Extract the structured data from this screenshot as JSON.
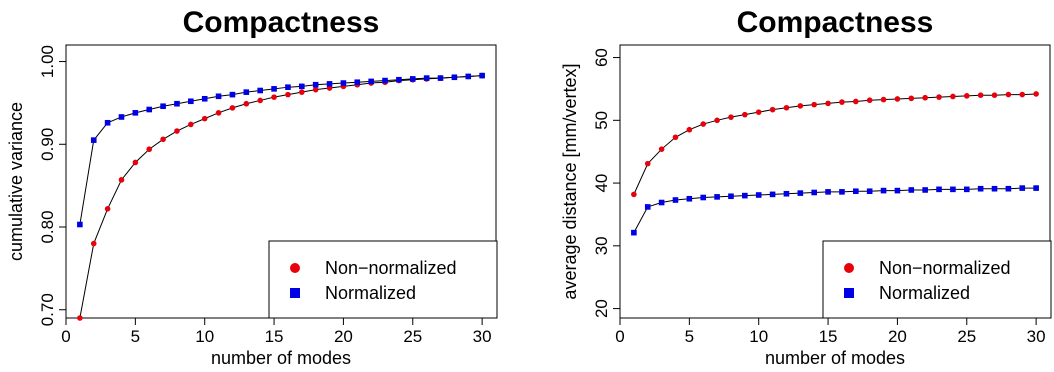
{
  "chart_data": [
    {
      "type": "scatter",
      "title": "Compactness",
      "xlabel": "number of modes",
      "ylabel": "cumulative variance",
      "xlim": [
        0,
        31
      ],
      "ylim": [
        0.69,
        1.02
      ],
      "xticks": [
        0,
        5,
        10,
        15,
        20,
        25,
        30
      ],
      "yticks": [
        0.7,
        0.8,
        0.9,
        1.0
      ],
      "ytick_labels": [
        "0.70",
        "0.80",
        "0.90",
        "1.00"
      ],
      "legend_position": "bottom-right",
      "x": [
        1,
        2,
        3,
        4,
        5,
        6,
        7,
        8,
        9,
        10,
        11,
        12,
        13,
        14,
        15,
        16,
        17,
        18,
        19,
        20,
        21,
        22,
        23,
        24,
        25,
        26,
        27,
        28,
        29,
        30
      ],
      "series": [
        {
          "name": "Non−normalized",
          "color": "#e8000b",
          "marker": "circle",
          "values": [
            0.69,
            0.78,
            0.822,
            0.857,
            0.878,
            0.894,
            0.906,
            0.916,
            0.924,
            0.931,
            0.938,
            0.944,
            0.949,
            0.953,
            0.957,
            0.96,
            0.963,
            0.966,
            0.968,
            0.97,
            0.972,
            0.974,
            0.975,
            0.977,
            0.978,
            0.979,
            0.98,
            0.981,
            0.982,
            0.983
          ]
        },
        {
          "name": "Normalized",
          "color": "#0000e6",
          "marker": "square",
          "values": [
            0.803,
            0.905,
            0.926,
            0.933,
            0.938,
            0.942,
            0.946,
            0.949,
            0.952,
            0.955,
            0.958,
            0.96,
            0.963,
            0.965,
            0.967,
            0.969,
            0.97,
            0.972,
            0.973,
            0.974,
            0.975,
            0.976,
            0.977,
            0.978,
            0.979,
            0.98,
            0.98,
            0.981,
            0.982,
            0.983
          ]
        }
      ]
    },
    {
      "type": "scatter",
      "title": "Compactness",
      "xlabel": "number of modes",
      "ylabel": "average distance [mm/vertex]",
      "xlim": [
        0,
        31
      ],
      "ylim": [
        18.5,
        62
      ],
      "xticks": [
        0,
        5,
        10,
        15,
        20,
        25,
        30
      ],
      "yticks": [
        20,
        30,
        40,
        50,
        60
      ],
      "ytick_labels": [
        "20",
        "30",
        "40",
        "50",
        "60"
      ],
      "legend_position": "bottom-right",
      "x": [
        1,
        2,
        3,
        4,
        5,
        6,
        7,
        8,
        9,
        10,
        11,
        12,
        13,
        14,
        15,
        16,
        17,
        18,
        19,
        20,
        21,
        22,
        23,
        24,
        25,
        26,
        27,
        28,
        29,
        30
      ],
      "series": [
        {
          "name": "Non−normalized",
          "color": "#e8000b",
          "marker": "circle",
          "values": [
            38.2,
            43.1,
            45.4,
            47.3,
            48.5,
            49.4,
            50.0,
            50.5,
            50.9,
            51.3,
            51.7,
            52.0,
            52.3,
            52.5,
            52.7,
            52.9,
            53.0,
            53.2,
            53.3,
            53.4,
            53.5,
            53.6,
            53.7,
            53.8,
            53.9,
            54.0,
            54.0,
            54.1,
            54.1,
            54.2
          ]
        },
        {
          "name": "Normalized",
          "color": "#0000e6",
          "marker": "square",
          "values": [
            32.1,
            36.2,
            36.9,
            37.3,
            37.5,
            37.7,
            37.8,
            37.9,
            38.0,
            38.1,
            38.2,
            38.3,
            38.4,
            38.5,
            38.6,
            38.6,
            38.7,
            38.7,
            38.8,
            38.8,
            38.9,
            38.9,
            39.0,
            39.0,
            39.0,
            39.1,
            39.1,
            39.1,
            39.2,
            39.2
          ]
        }
      ]
    }
  ]
}
